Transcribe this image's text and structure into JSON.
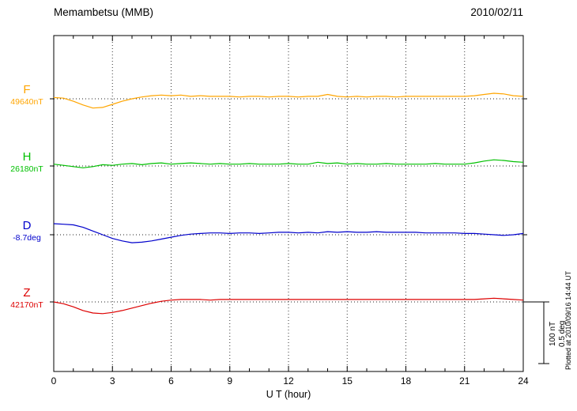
{
  "page": {
    "title": "Memambetsu (MMB)",
    "date": "2010/02/11",
    "plotted_note": "Plotted at 2010/09/16 14:44 UT"
  },
  "axes": {
    "x_label": "U T (hour)",
    "x_min": 0,
    "x_max": 24,
    "x_ticks": [
      0,
      3,
      6,
      9,
      12,
      15,
      18,
      21,
      24
    ],
    "grid_hours": [
      3,
      6,
      9,
      12,
      15,
      18,
      21
    ]
  },
  "scale_bar": {
    "labels": [
      "100 nT",
      "0.5 deg"
    ],
    "nT": 100,
    "deg": 0.5
  },
  "chart_data": {
    "type": "line",
    "title": "Memambetsu (MMB) magnetogram 2010/02/11",
    "xlabel": "U T (hour)",
    "x_start": 0,
    "x_step": 0.5,
    "xlim": [
      0,
      24
    ],
    "grid": "vertical-dotted",
    "series": [
      {
        "name": "F",
        "unit": "nT",
        "baseline_value": 49640,
        "baseline_label": "49640nT",
        "color": "#ffa500",
        "offsets": [
          2,
          1,
          -4,
          -10,
          -15,
          -14,
          -9,
          -4,
          0,
          3,
          5,
          6,
          5,
          6,
          4,
          5,
          4,
          4,
          4,
          3,
          4,
          4,
          3,
          4,
          4,
          3,
          4,
          4,
          7,
          4,
          3,
          4,
          3,
          4,
          4,
          3,
          4,
          4,
          4,
          4,
          4,
          4,
          4,
          5,
          7,
          9,
          8,
          5,
          4
        ]
      },
      {
        "name": "H",
        "unit": "nT",
        "baseline_value": 26180,
        "baseline_label": "26180nT",
        "color": "#00c000",
        "offsets": [
          3,
          1,
          -1,
          -3,
          -1,
          2,
          1,
          3,
          4,
          2,
          4,
          5,
          3,
          4,
          5,
          4,
          3,
          4,
          3,
          3,
          4,
          3,
          3,
          3,
          4,
          3,
          3,
          6,
          4,
          5,
          3,
          4,
          3,
          3,
          4,
          3,
          3,
          3,
          3,
          4,
          3,
          3,
          3,
          5,
          8,
          10,
          9,
          7,
          6
        ]
      },
      {
        "name": "D",
        "unit": "deg",
        "baseline_value": -8.7,
        "baseline_label": "-8.7deg",
        "color": "#0000cc",
        "offsets": [
          0.09,
          0.085,
          0.08,
          0.06,
          0.03,
          0.0,
          -0.03,
          -0.05,
          -0.065,
          -0.06,
          -0.05,
          -0.035,
          -0.02,
          -0.005,
          0.005,
          0.01,
          0.015,
          0.015,
          0.01,
          0.015,
          0.015,
          0.01,
          0.015,
          0.02,
          0.02,
          0.015,
          0.02,
          0.015,
          0.025,
          0.02,
          0.025,
          0.02,
          0.02,
          0.025,
          0.02,
          0.02,
          0.02,
          0.02,
          0.015,
          0.015,
          0.015,
          0.015,
          0.01,
          0.01,
          0.005,
          0.0,
          -0.005,
          0.0,
          0.01
        ]
      },
      {
        "name": "Z",
        "unit": "nT",
        "baseline_value": 42170,
        "baseline_label": "42170nT",
        "color": "#dd0000",
        "offsets": [
          0,
          -3,
          -8,
          -14,
          -18,
          -19,
          -17,
          -14,
          -10,
          -6,
          -2,
          1,
          3,
          4,
          4,
          4,
          3,
          4,
          4,
          4,
          4,
          4,
          4,
          4,
          4,
          4,
          4,
          4,
          4,
          4,
          4,
          4,
          4,
          4,
          4,
          4,
          4,
          4,
          4,
          4,
          4,
          4,
          4,
          4,
          5,
          6,
          5,
          4,
          3
        ]
      }
    ]
  }
}
